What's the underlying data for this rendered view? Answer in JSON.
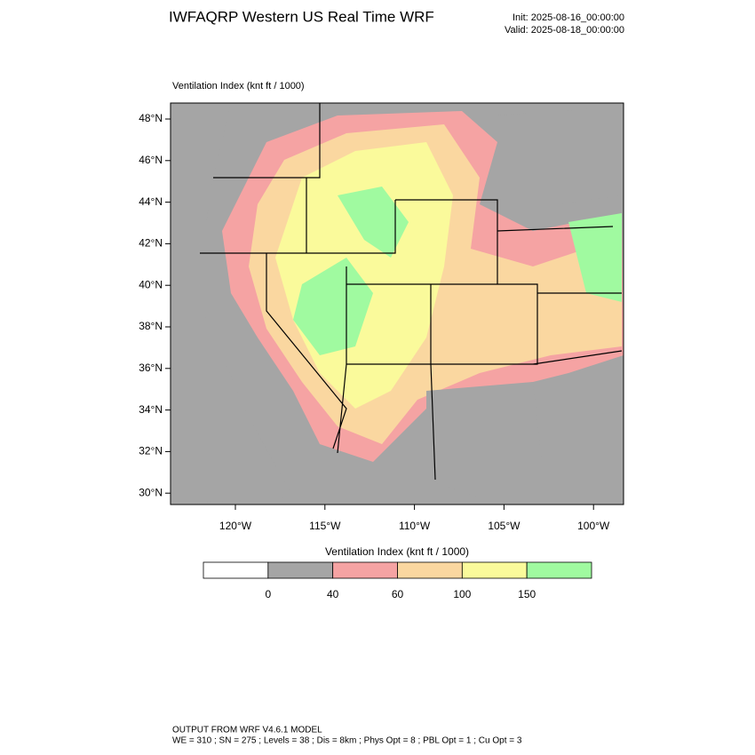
{
  "header": {
    "title": "IWFAQRP Western US Real Time WRF",
    "init": "Init: 2025-08-16_00:00:00",
    "valid": "Valid: 2025-08-18_00:00:00"
  },
  "map": {
    "label": "Ventilation Index   (knt ft / 1000)",
    "lat_ticks": [
      "48°N",
      "46°N",
      "44°N",
      "42°N",
      "40°N",
      "38°N",
      "36°N",
      "34°N",
      "32°N",
      "30°N"
    ],
    "lon_ticks": [
      "120°W",
      "115°W",
      "110°W",
      "105°W",
      "100°W"
    ]
  },
  "colorbar": {
    "title": "Ventilation Index   (knt ft / 1000)",
    "levels": [
      0,
      40,
      60,
      100,
      150
    ],
    "colors": [
      "#ffffff",
      "#a5a5a5",
      "#f5a3a3",
      "#fad7a0",
      "#fafa9b",
      "#a0faa0"
    ]
  },
  "footer": {
    "line1": "OUTPUT FROM WRF V4.6.1 MODEL",
    "line2": "WE = 310 ; SN = 275 ; Levels = 38 ; Dis = 8km ; Phys Opt = 8 ; PBL Opt = 1 ; Cu Opt = 3"
  }
}
